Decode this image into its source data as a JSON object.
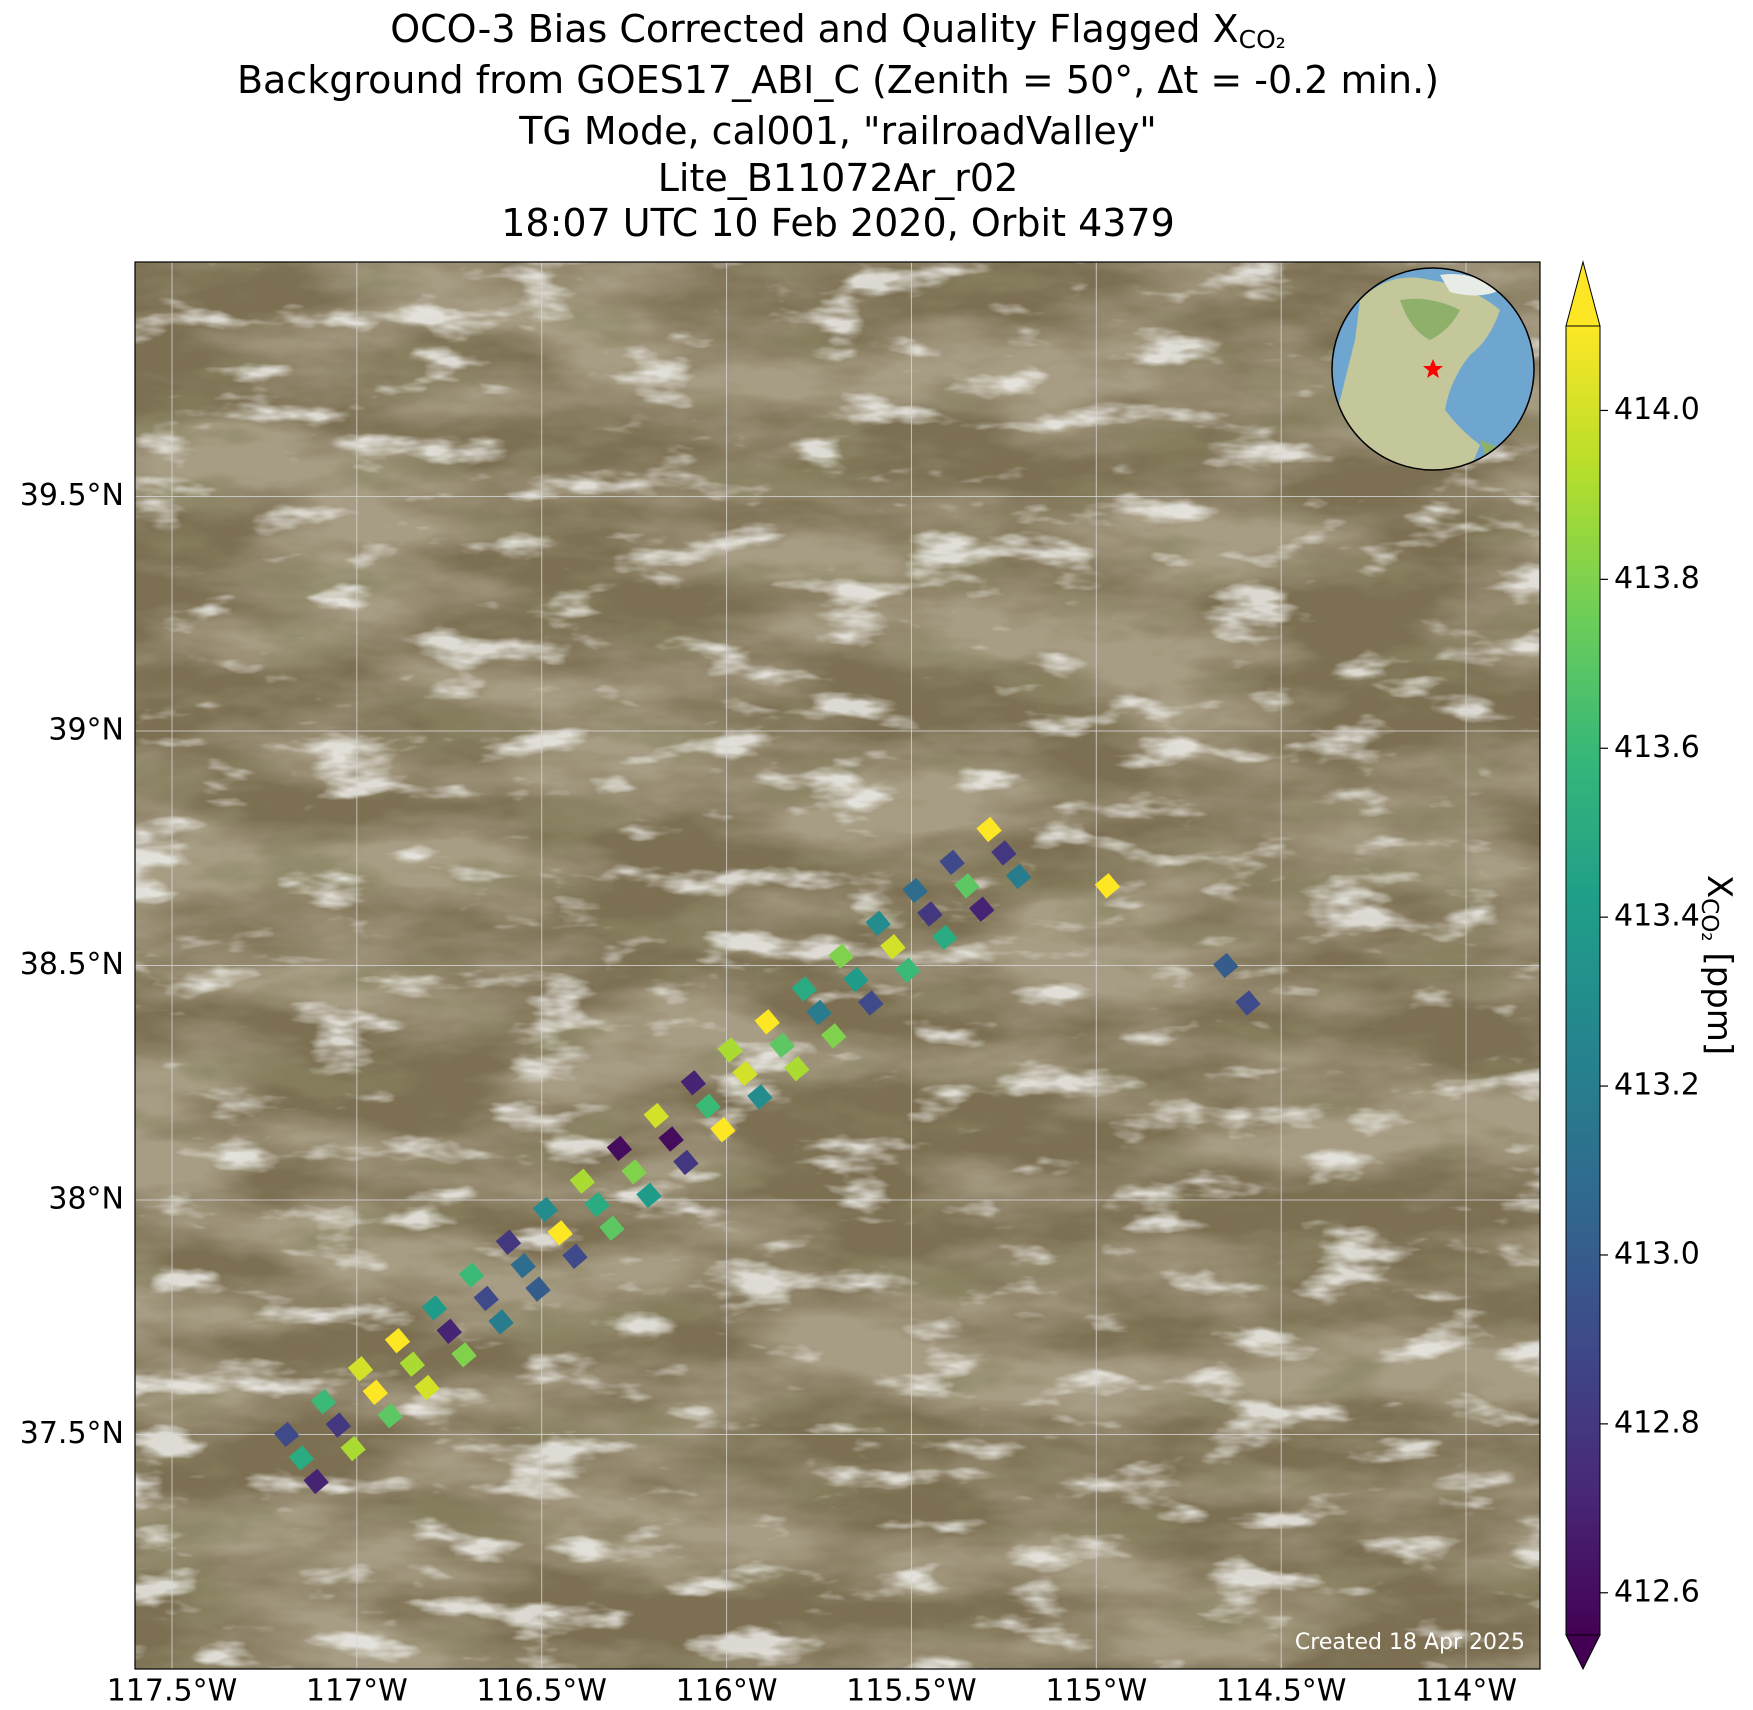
{
  "chart_data": {
    "type": "map-scatter",
    "title": [
      "OCO-3 Bias Corrected and Quality Flagged X",
      "Background from GOES17_ABI_C (Zenith = 50°, Δt = -0.2 min.)",
      "TG Mode, cal001, \"railroadValley\"",
      "Lite_B11072Ar_r02",
      "18:07 UTC 10 Feb 2020, Orbit 4379"
    ],
    "title_sub": "CO₂",
    "xlim": [
      -117.6,
      -113.8
    ],
    "ylim": [
      37.0,
      40.0
    ],
    "xticks": [
      {
        "value": -117.5,
        "label": "117.5°W"
      },
      {
        "value": -117,
        "label": "117°W"
      },
      {
        "value": -116.5,
        "label": "116.5°W"
      },
      {
        "value": -116,
        "label": "116°W"
      },
      {
        "value": -115.5,
        "label": "115.5°W"
      },
      {
        "value": -115,
        "label": "115°W"
      },
      {
        "value": -114.5,
        "label": "114.5°W"
      },
      {
        "value": -114,
        "label": "114°W"
      }
    ],
    "yticks": [
      {
        "value": 37.5,
        "label": "37.5°N"
      },
      {
        "value": 38,
        "label": "38°N"
      },
      {
        "value": 38.5,
        "label": "38.5°N"
      },
      {
        "value": 39,
        "label": "39°N"
      },
      {
        "value": 39.5,
        "label": "39.5°N"
      }
    ],
    "grid": true,
    "colormap": "viridis",
    "clim": [
      412.55,
      414.1
    ],
    "colorbar_ticks": [
      412.6,
      412.8,
      {
        "value": 413,
        "label": "413.0"
      },
      413.2,
      413.4,
      413.6,
      413.8,
      {
        "value": 414,
        "label": "414.0"
      }
    ],
    "colorbar_label": [
      "X",
      "CO₂",
      " [ppm]"
    ],
    "footnote": "Created 18 Apr 2025",
    "lon": [
      -117.19,
      -117.15,
      -117.11,
      -117.09,
      -117.05,
      -117.01,
      -116.99,
      -116.95,
      -116.91,
      -116.89,
      -116.85,
      -116.81,
      -116.79,
      -116.75,
      -116.71,
      -116.69,
      -116.65,
      -116.61,
      -116.59,
      -116.55,
      -116.51,
      -116.49,
      -116.45,
      -116.41,
      -116.39,
      -116.35,
      -116.31,
      -116.29,
      -116.25,
      -116.21,
      -116.19,
      -116.15,
      -116.11,
      -116.09,
      -116.05,
      -116.01,
      -115.99,
      -115.95,
      -115.91,
      -115.89,
      -115.85,
      -115.81,
      -115.79,
      -115.75,
      -115.71,
      -115.69,
      -115.65,
      -115.61,
      -115.59,
      -115.55,
      -115.51,
      -115.49,
      -115.45,
      -115.41,
      -115.39,
      -115.35,
      -115.31,
      -115.29,
      -115.25,
      -115.21,
      -114.97,
      -114.65,
      -114.59
    ],
    "lat": [
      37.5,
      37.45,
      37.4,
      37.57,
      37.52,
      37.47,
      37.64,
      37.59,
      37.54,
      37.7,
      37.65,
      37.6,
      37.77,
      37.72,
      37.67,
      37.84,
      37.79,
      37.74,
      37.91,
      37.86,
      37.81,
      37.98,
      37.93,
      37.88,
      38.04,
      37.99,
      37.94,
      38.11,
      38.06,
      38.01,
      38.18,
      38.13,
      38.08,
      38.25,
      38.2,
      38.15,
      38.32,
      38.27,
      38.22,
      38.38,
      38.33,
      38.28,
      38.45,
      38.4,
      38.35,
      38.52,
      38.47,
      38.42,
      38.59,
      38.54,
      38.49,
      38.66,
      38.61,
      38.56,
      38.72,
      38.67,
      38.62,
      38.79,
      38.74,
      38.69,
      38.67,
      38.5,
      38.42
    ],
    "values": [
      412.9,
      413.5,
      412.7,
      413.6,
      412.8,
      413.9,
      414.0,
      414.1,
      413.7,
      414.1,
      413.9,
      414.0,
      413.4,
      412.7,
      413.8,
      413.6,
      412.9,
      413.2,
      412.8,
      413.1,
      413.0,
      413.3,
      414.1,
      412.9,
      413.9,
      413.5,
      413.7,
      412.6,
      413.8,
      413.4,
      414.0,
      412.6,
      412.8,
      412.7,
      413.6,
      414.1,
      413.9,
      414.0,
      413.3,
      414.1,
      413.7,
      413.9,
      413.5,
      413.2,
      413.8,
      413.8,
      413.4,
      412.9,
      413.3,
      414.0,
      413.6,
      413.1,
      412.8,
      413.5,
      412.9,
      413.7,
      412.7,
      414.1,
      412.8,
      413.2,
      414.1,
      413.0,
      412.9
    ]
  }
}
